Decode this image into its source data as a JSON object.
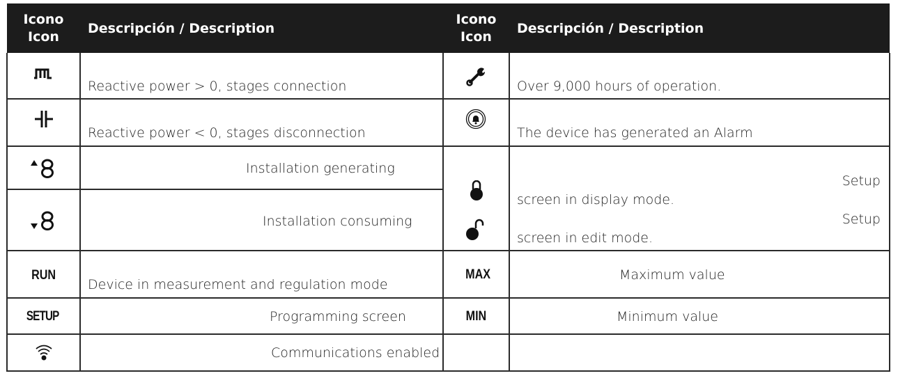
{
  "header": {
    "icon_col": [
      "Icono",
      "Icon"
    ],
    "desc_col": "Descripción / Description"
  },
  "left": [
    {
      "icon": "stages-connection-icon",
      "text": "Reactive power > 0, stages connection"
    },
    {
      "icon": "capacitor-icon",
      "text": "Reactive power < 0, stages disconnection"
    },
    {
      "icon": "arrow-up-digit-icon",
      "text": "Installation generating"
    },
    {
      "icon": "arrow-down-digit-icon",
      "text": "Installation consuming"
    },
    {
      "icon_text": "RUN",
      "text": "Device in measurement and regulation mode"
    },
    {
      "icon_text": "SETUP",
      "text": "Programming screen"
    },
    {
      "icon": "wifi-icon",
      "text": "Communications enabled"
    }
  ],
  "right": [
    {
      "icon": "wrench-icon",
      "text": "Over 9,000 hours of operation."
    },
    {
      "icon": "alarm-bell-icon",
      "text": "The device has generated an Alarm"
    },
    {
      "icon": "lock-closed-icon",
      "text_a": "Setup",
      "text_b": "screen in display mode."
    },
    {
      "icon": "lock-open-icon",
      "text_a": "Setup",
      "text_b": "screen in edit mode."
    },
    {
      "icon_text": "MAX",
      "text": "Maximum value"
    },
    {
      "icon_text": "MIN",
      "text": "Minimum value"
    }
  ]
}
